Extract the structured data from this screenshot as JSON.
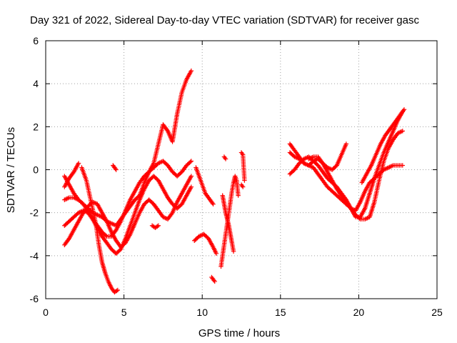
{
  "chart_data": {
    "type": "scatter",
    "title": "Day 321 of 2022, Sidereal Day-to-day VTEC variation (SDTVAR) for receiver gasc",
    "xlabel": "GPS time / hours",
    "ylabel": "SDTVAR / TECUs",
    "xlim": [
      0,
      25
    ],
    "ylim": [
      -6,
      6
    ],
    "xticks": [
      "0",
      "5",
      "10",
      "15",
      "20",
      "25"
    ],
    "yticks": [
      "-6",
      "-4",
      "-2",
      "0",
      "2",
      "4",
      "6"
    ],
    "grid": true,
    "marker": "+",
    "color": "#ff0000",
    "series": [
      {
        "x": [
          1.2,
          1.5,
          1.8,
          2.1,
          2.4,
          2.7,
          3.0,
          3.3,
          3.6,
          3.9,
          4.2,
          4.5,
          4.8,
          5.1,
          5.4,
          5.7,
          6.0,
          6.3,
          6.6,
          6.9,
          7.2,
          7.5,
          7.8,
          8.1,
          8.4,
          8.7,
          9.0,
          9.3
        ],
        "y": [
          -0.3,
          -0.7,
          -1.1,
          -1.4,
          -1.6,
          -1.8,
          -2.0,
          -2.1,
          -2.2,
          -2.4,
          -2.5,
          -2.6,
          -2.3,
          -2.0,
          -1.7,
          -1.4,
          -1.2,
          -0.6,
          -0.1,
          0.3,
          1.2,
          2.1,
          1.8,
          1.3,
          2.6,
          3.6,
          4.2,
          4.6
        ]
      },
      {
        "x": [
          1.2,
          1.5,
          1.8,
          2.1,
          2.4,
          2.7,
          3.0,
          3.3,
          3.6,
          3.9,
          4.2,
          4.5,
          4.8,
          5.1,
          5.4,
          5.7,
          6.0,
          6.3,
          6.6,
          6.9,
          7.2,
          7.5,
          7.8,
          8.1,
          8.4,
          8.7,
          9.0,
          9.3
        ],
        "y": [
          -1.4,
          -1.3,
          -1.3,
          -1.4,
          -1.6,
          -1.9,
          -2.3,
          -2.7,
          -3.1,
          -3.4,
          -3.7,
          -3.9,
          -3.7,
          -3.2,
          -2.6,
          -2.0,
          -1.4,
          -0.9,
          -0.5,
          -0.3,
          -0.5,
          -0.9,
          -1.3,
          -1.6,
          -1.8,
          -1.6,
          -1.2,
          -0.8
        ]
      },
      {
        "x": [
          1.2,
          1.5,
          1.8,
          2.1,
          2.4,
          2.7,
          3.0,
          3.3,
          3.6,
          3.9,
          4.2,
          4.5,
          4.8,
          5.1,
          5.4,
          5.7,
          6.0,
          6.3,
          6.6,
          6.9,
          7.2,
          7.5,
          7.8,
          8.1,
          8.4,
          8.7,
          9.0,
          9.3
        ],
        "y": [
          -2.6,
          -2.4,
          -2.2,
          -2.0,
          -1.9,
          -2.0,
          -2.3,
          -2.6,
          -2.9,
          -3.1,
          -3.1,
          -2.8,
          -2.4,
          -1.9,
          -1.4,
          -1.0,
          -0.6,
          -0.3,
          -0.1,
          0.1,
          0.3,
          0.4,
          0.2,
          -0.1,
          -0.3,
          -0.1,
          0.2,
          0.4
        ]
      },
      {
        "x": [
          1.2,
          1.5,
          1.8,
          2.1,
          2.4,
          2.7,
          3.0,
          3.3,
          3.6,
          3.9,
          4.2,
          4.5,
          4.8,
          5.1,
          5.4,
          5.7,
          6.0,
          6.3,
          6.6,
          6.9,
          7.2,
          7.5,
          7.8,
          8.1,
          8.4,
          8.7,
          9.0,
          9.3
        ],
        "y": [
          -3.5,
          -3.2,
          -2.8,
          -2.4,
          -2.0,
          -1.7,
          -1.5,
          -1.6,
          -2.0,
          -2.4,
          -2.9,
          -3.3,
          -3.6,
          -3.4,
          -3.0,
          -2.5,
          -2.0,
          -1.6,
          -1.4,
          -1.6,
          -1.9,
          -2.2,
          -2.3,
          -2.0,
          -1.5,
          -1.1,
          -0.7,
          -0.3
        ]
      },
      {
        "x": [
          1.2,
          1.5,
          1.8,
          2.1
        ],
        "y": [
          -0.8,
          -0.4,
          -0.1,
          0.3
        ]
      },
      {
        "x": [
          2.3,
          2.6,
          2.9,
          3.2,
          3.4,
          3.6,
          3.8,
          4.0,
          4.2,
          4.4,
          4.6
        ],
        "y": [
          0.1,
          -0.5,
          -1.5,
          -2.5,
          -3.5,
          -4.3,
          -4.8,
          -5.2,
          -5.5,
          -5.7,
          -5.6
        ]
      },
      {
        "x": [
          4.3,
          4.4,
          4.5
        ],
        "y": [
          0.2,
          0.1,
          0.0
        ]
      },
      {
        "x": [
          6.8,
          7.0,
          7.2
        ],
        "y": [
          -2.6,
          -2.7,
          -2.6
        ]
      },
      {
        "x": [
          9.5,
          9.8,
          10.1,
          10.4,
          10.7,
          10.9
        ],
        "y": [
          -3.3,
          -3.1,
          -3.0,
          -3.2,
          -3.6,
          -3.9
        ]
      },
      {
        "x": [
          9.6,
          9.9,
          10.2,
          10.5,
          10.7
        ],
        "y": [
          0.1,
          -0.5,
          -1.1,
          -1.4,
          -1.6
        ]
      },
      {
        "x": [
          10.6,
          10.7,
          10.8
        ],
        "y": [
          -5.0,
          -5.1,
          -5.2
        ]
      },
      {
        "x": [
          11.2,
          11.3,
          11.4,
          11.5,
          11.6,
          11.7,
          11.8,
          11.9,
          12.0,
          12.1,
          12.2,
          12.3
        ],
        "y": [
          -4.5,
          -4.0,
          -3.5,
          -3.0,
          -2.5,
          -2.0,
          -1.5,
          -1.0,
          -0.6,
          -0.3,
          -0.5,
          -1.2
        ]
      },
      {
        "x": [
          11.3,
          11.4,
          11.5,
          11.6,
          11.7,
          11.8,
          11.9,
          12.0
        ],
        "y": [
          -1.2,
          -1.6,
          -2.0,
          -2.3,
          -2.6,
          -3.0,
          -3.4,
          -3.8
        ]
      },
      {
        "x": [
          11.4,
          11.5
        ],
        "y": [
          0.6,
          0.5
        ]
      },
      {
        "x": [
          12.5,
          12.6,
          12.7
        ],
        "y": [
          0.8,
          0.7,
          -0.5
        ]
      },
      {
        "x": [
          12.5,
          12.6
        ],
        "y": [
          -0.7,
          -0.8
        ]
      },
      {
        "x": [
          15.6,
          15.9,
          16.2,
          16.5,
          16.8,
          17.1,
          17.4,
          17.7,
          18.0,
          18.3,
          18.6,
          18.9,
          19.2
        ],
        "y": [
          1.2,
          0.9,
          0.6,
          0.3,
          0.2,
          0.4,
          0.5,
          0.3,
          0.1,
          0.0,
          0.2,
          0.7,
          1.2
        ]
      },
      {
        "x": [
          15.6,
          15.9,
          16.2,
          16.5,
          16.8,
          17.1,
          17.4,
          17.7,
          18.0,
          18.3,
          18.6,
          18.9,
          19.2,
          19.5,
          19.8,
          20.1,
          20.4,
          20.7,
          21.0,
          21.3,
          21.6,
          21.9,
          22.2,
          22.5,
          22.8
        ],
        "y": [
          0.8,
          0.6,
          0.5,
          0.3,
          0.2,
          0.1,
          -0.2,
          -0.5,
          -0.8,
          -1.0,
          -1.2,
          -1.4,
          -1.6,
          -1.8,
          -1.9,
          -1.5,
          -1.0,
          -0.6,
          -0.4,
          -0.2,
          0.0,
          0.1,
          0.2,
          0.2,
          0.2
        ]
      },
      {
        "x": [
          15.6,
          15.9,
          16.2,
          16.5,
          16.8,
          17.1,
          17.4,
          17.7,
          18.0,
          18.3,
          18.6,
          18.9,
          19.2,
          19.5,
          19.8,
          20.1,
          20.4,
          20.7,
          21.0,
          21.3,
          21.6,
          21.9,
          22.2,
          22.5,
          22.8
        ],
        "y": [
          -0.2,
          0.0,
          0.3,
          0.5,
          0.6,
          0.4,
          0.2,
          -0.1,
          -0.4,
          -0.6,
          -0.8,
          -1.1,
          -1.4,
          -1.8,
          -2.2,
          -2.2,
          -1.8,
          -1.1,
          -0.4,
          0.2,
          0.8,
          1.3,
          1.8,
          2.3,
          2.7
        ]
      },
      {
        "x": [
          16.8,
          17.1,
          17.4,
          17.7,
          18.0,
          18.3,
          18.6,
          18.9,
          19.2,
          19.5,
          19.8,
          20.1,
          20.4,
          20.7,
          21.0,
          21.3,
          21.6,
          21.9,
          22.2,
          22.5,
          22.8
        ],
        "y": [
          0.5,
          0.6,
          0.6,
          0.3,
          -0.1,
          -0.5,
          -0.9,
          -1.2,
          -1.5,
          -1.8,
          -2.1,
          -2.3,
          -2.3,
          -2.2,
          -1.5,
          -0.5,
          0.4,
          1.0,
          1.4,
          1.7,
          1.8
        ]
      },
      {
        "x": [
          20.2,
          20.5,
          20.8,
          21.1,
          21.4,
          21.7,
          22.0,
          22.3,
          22.6,
          22.9
        ],
        "y": [
          -0.6,
          -0.2,
          0.2,
          0.7,
          1.2,
          1.6,
          1.9,
          2.2,
          2.5,
          2.8
        ]
      }
    ]
  }
}
